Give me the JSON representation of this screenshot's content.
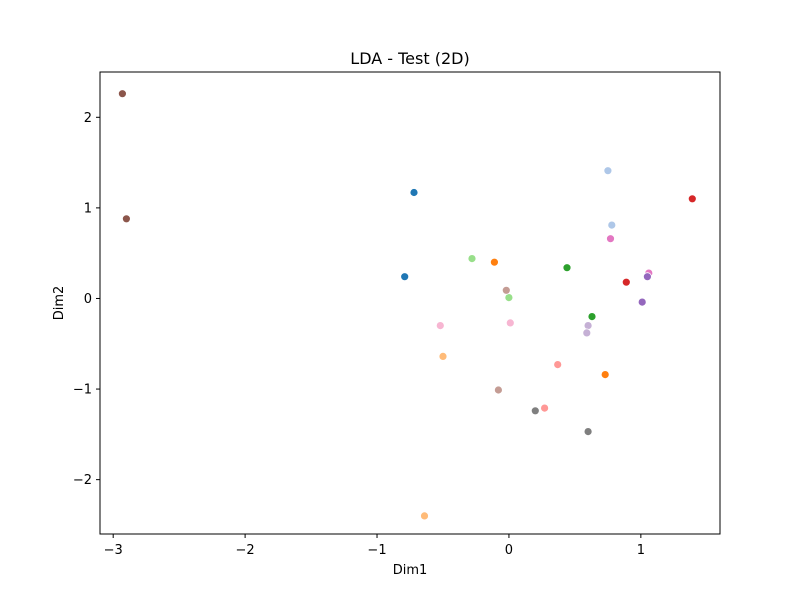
{
  "chart_data": {
    "type": "scatter",
    "title": "LDA - Test (2D)",
    "xlabel": "Dim1",
    "ylabel": "Dim2",
    "xlim": [
      -3.1,
      1.6
    ],
    "ylim": [
      -2.6,
      2.5
    ],
    "xticks": [
      {
        "value": -3,
        "label": "−3"
      },
      {
        "value": -2,
        "label": "−2"
      },
      {
        "value": -1,
        "label": "−1"
      },
      {
        "value": 0,
        "label": "0"
      },
      {
        "value": 1,
        "label": "1"
      }
    ],
    "yticks": [
      {
        "value": -2,
        "label": "−2"
      },
      {
        "value": -1,
        "label": "−1"
      },
      {
        "value": 0,
        "label": "0"
      },
      {
        "value": 1,
        "label": "1"
      },
      {
        "value": 2,
        "label": "2"
      }
    ],
    "grid": false,
    "points": [
      {
        "x": -2.93,
        "y": 2.26,
        "color": "#8c564b"
      },
      {
        "x": -2.9,
        "y": 0.88,
        "color": "#8c564b"
      },
      {
        "x": -0.72,
        "y": 1.17,
        "color": "#1f77b4"
      },
      {
        "x": -0.79,
        "y": 0.24,
        "color": "#1f77b4"
      },
      {
        "x": 0.75,
        "y": 1.41,
        "color": "#aec7e8"
      },
      {
        "x": 0.78,
        "y": 0.81,
        "color": "#aec7e8"
      },
      {
        "x": 1.39,
        "y": 1.1,
        "color": "#d62728"
      },
      {
        "x": 0.89,
        "y": 0.18,
        "color": "#d62728"
      },
      {
        "x": 0.77,
        "y": 0.66,
        "color": "#e377c2"
      },
      {
        "x": 1.06,
        "y": 0.28,
        "color": "#e377c2"
      },
      {
        "x": 1.05,
        "y": 0.24,
        "color": "#9467bd"
      },
      {
        "x": 1.01,
        "y": -0.04,
        "color": "#9467bd"
      },
      {
        "x": -0.28,
        "y": 0.44,
        "color": "#98df8a"
      },
      {
        "x": 0.0,
        "y": 0.01,
        "color": "#98df8a"
      },
      {
        "x": -0.11,
        "y": 0.4,
        "color": "#ff7f0e"
      },
      {
        "x": 0.73,
        "y": -0.84,
        "color": "#ff7f0e"
      },
      {
        "x": 0.44,
        "y": 0.34,
        "color": "#2ca02c"
      },
      {
        "x": 0.63,
        "y": -0.2,
        "color": "#2ca02c"
      },
      {
        "x": -0.02,
        "y": 0.09,
        "color": "#c49c94"
      },
      {
        "x": -0.08,
        "y": -1.01,
        "color": "#c49c94"
      },
      {
        "x": -0.52,
        "y": -0.3,
        "color": "#f7b6d2"
      },
      {
        "x": 0.01,
        "y": -0.27,
        "color": "#f7b6d2"
      },
      {
        "x": 0.6,
        "y": -0.3,
        "color": "#c5b0d5"
      },
      {
        "x": 0.59,
        "y": -0.38,
        "color": "#c5b0d5"
      },
      {
        "x": -0.5,
        "y": -0.64,
        "color": "#ffbb78"
      },
      {
        "x": -0.64,
        "y": -2.4,
        "color": "#ffbb78"
      },
      {
        "x": 0.37,
        "y": -0.73,
        "color": "#ff9896"
      },
      {
        "x": 0.27,
        "y": -1.21,
        "color": "#ff9896"
      },
      {
        "x": 0.2,
        "y": -1.24,
        "color": "#7f7f7f"
      },
      {
        "x": 0.6,
        "y": -1.47,
        "color": "#7f7f7f"
      }
    ]
  }
}
